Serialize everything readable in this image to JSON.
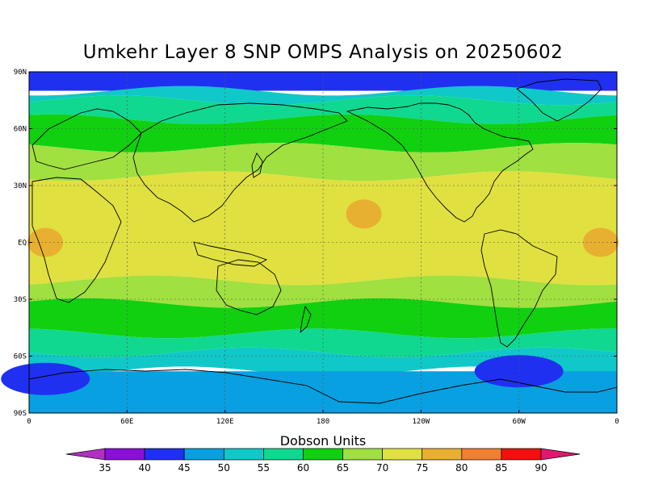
{
  "title": "Umkehr Layer 8 SNP OMPS Analysis on 20250602",
  "colorbar": {
    "title": "Dobson Units",
    "levels": [
      35,
      40,
      45,
      50,
      55,
      60,
      65,
      70,
      75,
      80,
      85,
      90
    ],
    "labels": [
      "35",
      "40",
      "45",
      "50",
      "55",
      "60",
      "65",
      "70",
      "75",
      "80",
      "85",
      "90"
    ],
    "under_color": "#b030c0",
    "over_color": "#e01870",
    "colors": [
      "#8a10d8",
      "#2030f0",
      "#08a0e0",
      "#10c8c8",
      "#10d890",
      "#10d010",
      "#a0e040",
      "#e0e040",
      "#e8b030",
      "#f08030",
      "#f01010"
    ]
  },
  "axes": {
    "lat_labels": [
      "90N",
      "60N",
      "30N",
      "EQ",
      "30S",
      "60S",
      "90S"
    ],
    "lon_labels": [
      "0",
      "60E",
      "120E",
      "180",
      "120W",
      "60W",
      "0"
    ]
  },
  "chart_data": {
    "type": "heatmap",
    "title": "Umkehr Layer 8 SNP OMPS Analysis on 20250602",
    "units": "Dobson Units",
    "lon_range": [
      0,
      360
    ],
    "lat_range": [
      -90,
      90
    ],
    "grid": true,
    "zonal_bands_du": [
      {
        "lat": "90N-80N",
        "value": 42
      },
      {
        "lat": "80N-75N",
        "value": 52
      },
      {
        "lat": "75N-65N",
        "value": 57
      },
      {
        "lat": "65N-50N",
        "value": 62
      },
      {
        "lat": "50N-35N",
        "value": 67
      },
      {
        "lat": "35N-20S",
        "value": 72
      },
      {
        "lat": "20S-32S",
        "value": 67
      },
      {
        "lat": "32S-48S",
        "value": 62
      },
      {
        "lat": "48S-58S",
        "value": 57
      },
      {
        "lat": "58S-68S",
        "value": 52
      },
      {
        "lat": "68S-90S",
        "value": 47
      }
    ],
    "local_features": [
      {
        "name": "equatorial maximum",
        "lon": 10,
        "lat": 0,
        "value": 77
      },
      {
        "name": "equatorial maximum",
        "lon": 350,
        "lat": 0,
        "value": 77
      },
      {
        "name": "local maximum",
        "lon": 205,
        "lat": 15,
        "value": 77
      },
      {
        "name": "antarctic minimum",
        "lon": 300,
        "lat": -68,
        "value": 42
      },
      {
        "name": "antarctic minimum",
        "lon": 10,
        "lat": -72,
        "value": 42
      }
    ]
  }
}
